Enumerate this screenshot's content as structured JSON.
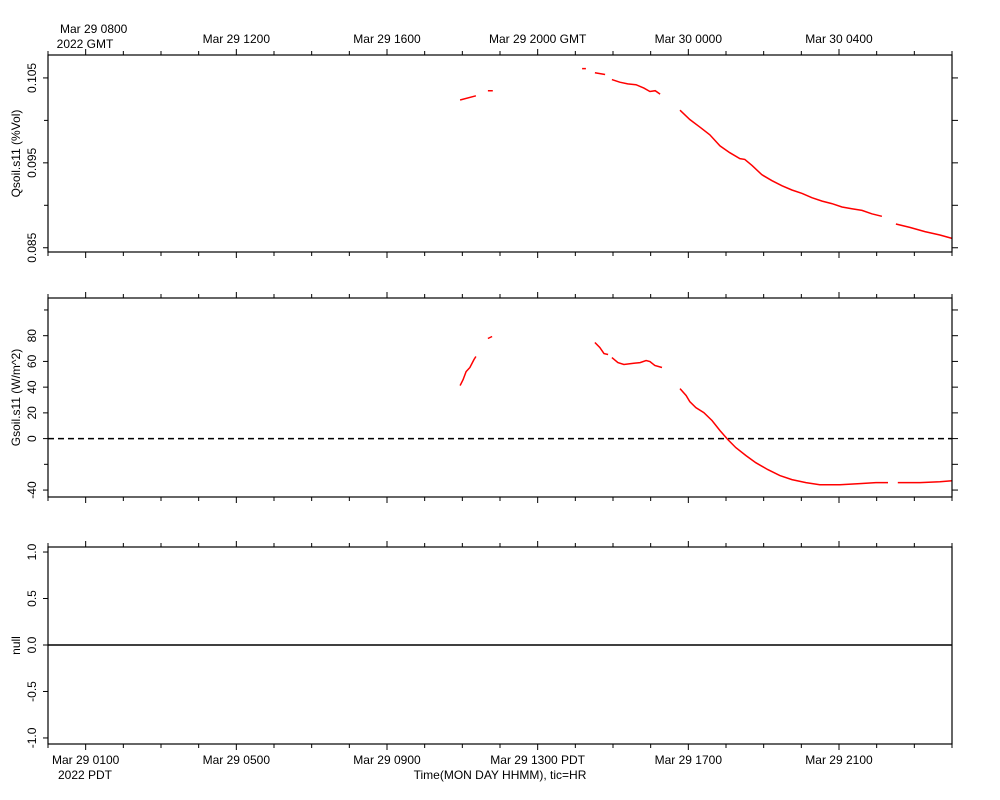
{
  "time_axis": {
    "xlim": [
      0,
      24
    ],
    "xticks": [
      {
        "value": 1,
        "label": "Mar 29 0100"
      },
      {
        "value": 5,
        "label": "Mar 29 0500"
      },
      {
        "value": 9,
        "label": "Mar 29 0900"
      },
      {
        "value": 13,
        "label": "Mar 29 1300 PDT"
      },
      {
        "value": 17,
        "label": "Mar 29 1700"
      },
      {
        "value": 21,
        "label": "Mar 29 2100"
      }
    ],
    "x2ticks": [
      {
        "value": 1,
        "label": "Mar 29 0800"
      },
      {
        "value": 5,
        "label": "Mar 29 1200"
      },
      {
        "value": 9,
        "label": "Mar 29 1600"
      },
      {
        "value": 13,
        "label": "Mar 29 2000 GMT"
      },
      {
        "value": 17,
        "label": "Mar 30 0000"
      },
      {
        "value": 21,
        "label": "Mar 30 0400"
      }
    ],
    "xminor_ticks": [
      0,
      1,
      2,
      3,
      4,
      5,
      6,
      7,
      8,
      9,
      10,
      11,
      12,
      13,
      14,
      15,
      16,
      17,
      18,
      19,
      20,
      21,
      22,
      23,
      24
    ],
    "x_year_label": "2022 PDT",
    "x2_year_label": "2022 GMT",
    "xlabel": "Time(MON DAY HHMM), tic=HR"
  },
  "chart_data": [
    {
      "type": "line",
      "ylabel": "Qsoil.s11 (%Vol)",
      "ylim": [
        0.0845,
        0.1077
      ],
      "yticks": [
        0.085,
        0.095,
        0.105
      ],
      "yminor_ticks": [
        0.09,
        0.1
      ],
      "right_ticks": true,
      "series": [
        {
          "color": "#ff0000",
          "x": [
            10.94,
            11.36,
            null,
            11.68,
            11.81,
            null,
            14.18,
            14.28,
            null,
            14.52,
            14.79,
            null,
            14.97,
            15.18,
            15.39,
            15.61,
            15.82,
            15.98,
            16.12,
            16.25,
            null,
            16.78,
            17.04,
            17.31,
            17.57,
            17.84,
            18.1,
            18.37,
            18.5,
            18.69,
            18.95,
            19.22,
            19.49,
            19.75,
            20.02,
            20.28,
            20.55,
            20.81,
            21.08,
            21.34,
            21.61,
            21.87,
            22.14,
            null,
            22.51,
            22.88,
            23.28,
            23.68,
            24.0
          ],
          "values": [
            0.1024,
            0.1029,
            null,
            0.1035,
            0.1035,
            null,
            0.1061,
            0.1061,
            null,
            0.1056,
            0.1054,
            null,
            0.1048,
            0.1045,
            0.1043,
            0.1042,
            0.1038,
            0.1034,
            0.1035,
            0.1031,
            null,
            0.1012,
            0.1001,
            0.0992,
            0.0983,
            0.097,
            0.0962,
            0.0955,
            0.0954,
            0.0947,
            0.0936,
            0.0929,
            0.0923,
            0.0918,
            0.0914,
            0.0909,
            0.0905,
            0.0902,
            0.0898,
            0.0896,
            0.0894,
            0.089,
            0.0887,
            null,
            0.0878,
            0.0874,
            0.0869,
            0.0865,
            0.0861
          ]
        }
      ]
    },
    {
      "type": "line",
      "ylabel": "Gsoil.s11 (W/m^2)",
      "ylim": [
        -45.4,
        109.3
      ],
      "yticks": [
        -40,
        0,
        20,
        40,
        60,
        80
      ],
      "yminor_ticks": [
        -20,
        100
      ],
      "right_ticks": true,
      "zero_line": "dashed",
      "series": [
        {
          "color": "#ff0000",
          "x": [
            10.94,
            11.02,
            11.1,
            11.2,
            11.31,
            11.36,
            null,
            11.68,
            11.79,
            null,
            14.52,
            14.65,
            14.76,
            14.87,
            null,
            14.97,
            15.13,
            15.29,
            15.5,
            15.72,
            15.88,
            15.98,
            16.11,
            16.3,
            null,
            16.78,
            16.94,
            17.04,
            17.2,
            17.41,
            17.63,
            17.84,
            18.05,
            18.26,
            18.53,
            18.79,
            19.11,
            19.43,
            19.75,
            20.12,
            20.49,
            21.02,
            21.55,
            21.98,
            22.3,
            null,
            22.56,
            23.15,
            23.68,
            24.0
          ],
          "values": [
            41.2,
            45.9,
            52.1,
            55.3,
            61.5,
            63.8,
            null,
            77.8,
            79.4,
            null,
            74.7,
            70.8,
            66.1,
            65.4,
            null,
            63.0,
            59.1,
            57.6,
            58.4,
            59.1,
            60.7,
            59.9,
            56.8,
            55.3,
            null,
            38.9,
            33.5,
            28.8,
            24.1,
            20.2,
            14.0,
            6.2,
            -0.8,
            -7.0,
            -13.2,
            -18.7,
            -24.1,
            -28.8,
            -31.9,
            -34.2,
            -35.8,
            -35.8,
            -35.0,
            -34.2,
            -34.2,
            null,
            -34.2,
            -34.2,
            -33.5,
            -32.7
          ]
        }
      ]
    },
    {
      "type": "line",
      "ylabel": "null",
      "ylim": [
        -1.065,
        1.054
      ],
      "yticks": [
        {
          "value": -1,
          "label": "-1.0"
        },
        {
          "value": -0.5,
          "label": "-0.5"
        },
        {
          "value": 0,
          "label": "0.0"
        },
        {
          "value": 0.5,
          "label": "0.5"
        },
        {
          "value": 1,
          "label": "1.0"
        }
      ],
      "right_ticks": false,
      "zero_line": "solid",
      "series": []
    }
  ]
}
